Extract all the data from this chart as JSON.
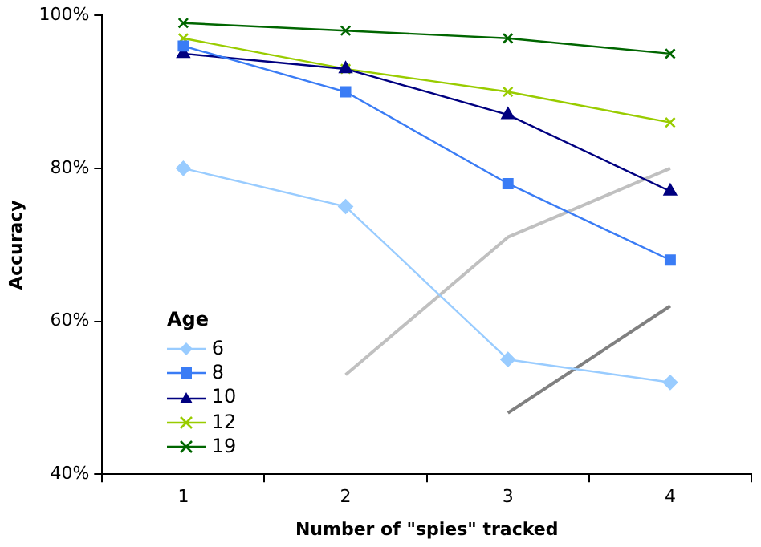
{
  "chart_data": {
    "type": "line",
    "xlabel": "Number of \"spies\" tracked",
    "ylabel": "Accuracy",
    "legend_title": "Age",
    "legend": "bottom left",
    "grid": false,
    "categories": [
      "1",
      "2",
      "3",
      "4"
    ],
    "ylim": [
      40,
      100
    ],
    "yticks": [
      {
        "value": 40,
        "label": "40%"
      },
      {
        "value": 60,
        "label": "60%"
      },
      {
        "value": 80,
        "label": "80%"
      },
      {
        "value": 100,
        "label": "100%"
      }
    ],
    "series": [
      {
        "name": "6",
        "color": "#99ccff",
        "marker": "diamond",
        "values": [
          80,
          75,
          55,
          52
        ]
      },
      {
        "name": "8",
        "color": "#3a7cf5",
        "marker": "square",
        "values": [
          96,
          90,
          78,
          68
        ]
      },
      {
        "name": "10",
        "color": "#000080",
        "marker": "triangle",
        "values": [
          95,
          93,
          87,
          77
        ]
      },
      {
        "name": "12",
        "color": "#99cc00",
        "marker": "cross",
        "values": [
          97,
          93,
          90,
          86
        ]
      },
      {
        "name": "19",
        "color": "#006600",
        "marker": "cross",
        "values": [
          99,
          98,
          97,
          95
        ]
      },
      {
        "color": "#c0c0c0",
        "marker": "none",
        "values": [
          null,
          53,
          71,
          80
        ]
      },
      {
        "color": "#808080",
        "marker": "none",
        "values": [
          null,
          null,
          48,
          62
        ]
      }
    ]
  }
}
